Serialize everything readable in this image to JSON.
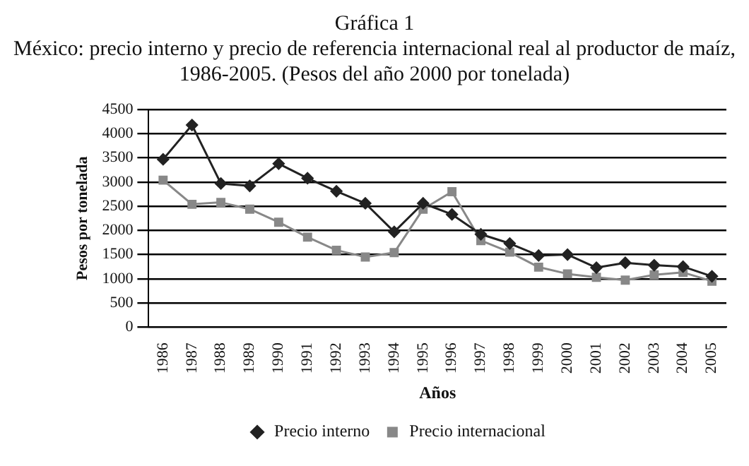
{
  "chart_data": {
    "type": "line",
    "title": "Gráfica 1",
    "subtitle": "México: precio interno y precio de referencia internacional real al productor de maíz, 1986-2005. (Pesos del año 2000 por tonelada)",
    "xlabel": "Años",
    "ylabel": "Pesos por tonelada",
    "categories": [
      "1986",
      "1987",
      "1988",
      "1989",
      "1990",
      "1991",
      "1992",
      "1993",
      "1994",
      "1995",
      "1996",
      "1997",
      "1998",
      "1999",
      "2000",
      "2001",
      "2002",
      "2003",
      "2004",
      "2005"
    ],
    "series": [
      {
        "name": "Precio interno",
        "color": "#222222",
        "marker": "diamond",
        "values": [
          3470,
          4180,
          2970,
          2920,
          3380,
          3080,
          2810,
          2560,
          1970,
          2560,
          2330,
          1920,
          1730,
          1480,
          1500,
          1230,
          1330,
          1280,
          1250,
          1050
        ]
      },
      {
        "name": "Precio internacional",
        "color": "#888888",
        "marker": "square",
        "values": [
          3040,
          2540,
          2580,
          2440,
          2170,
          1860,
          1590,
          1450,
          1540,
          2440,
          2800,
          1790,
          1550,
          1240,
          1100,
          1030,
          970,
          1080,
          1130,
          950
        ]
      }
    ],
    "ylim": [
      0,
      4500
    ],
    "yticks": [
      0,
      500,
      1000,
      1500,
      2000,
      2500,
      3000,
      3500,
      4000,
      4500
    ],
    "grid": "y",
    "legend": "bottom"
  }
}
